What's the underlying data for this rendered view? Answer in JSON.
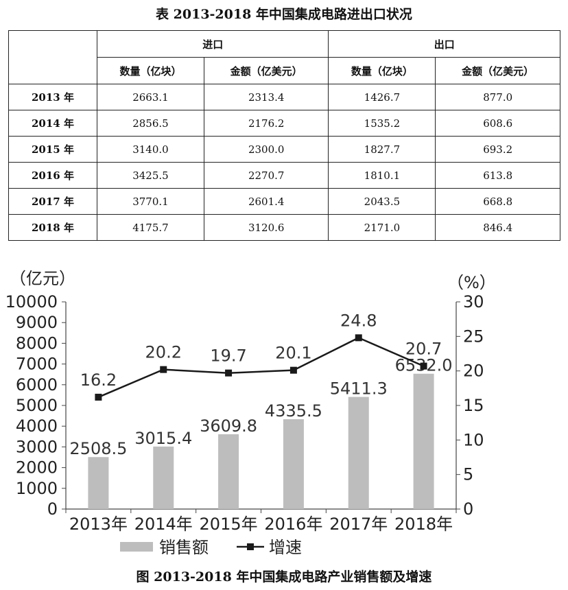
{
  "table": {
    "title": "表 2013-2018 年中国集成电路进出口状况",
    "group_headers": [
      "进口",
      "出口"
    ],
    "sub_headers": [
      "数量（亿块）",
      "金额（亿美元）",
      "数量（亿块）",
      "金额（亿美元）"
    ],
    "rows": [
      {
        "year": "2013 年",
        "cells": [
          "2663.1",
          "2313.4",
          "1426.7",
          "877.0"
        ]
      },
      {
        "year": "2014 年",
        "cells": [
          "2856.5",
          "2176.2",
          "1535.2",
          "608.6"
        ]
      },
      {
        "year": "2015 年",
        "cells": [
          "3140.0",
          "2300.0",
          "1827.7",
          "693.2"
        ]
      },
      {
        "year": "2016 年",
        "cells": [
          "3425.5",
          "2270.7",
          "1810.1",
          "613.8"
        ]
      },
      {
        "year": "2017 年",
        "cells": [
          "3770.1",
          "2601.4",
          "2043.5",
          "668.8"
        ]
      },
      {
        "year": "2018 年",
        "cells": [
          "4175.7",
          "3120.6",
          "2171.0",
          "846.4"
        ]
      }
    ]
  },
  "chart_data": {
    "type": "bar",
    "title": "图 2013-2018 年中国集成电路产业销售额及增速",
    "categories": [
      "2013年",
      "2014年",
      "2015年",
      "2016年",
      "2017年",
      "2018年"
    ],
    "left_axis_label": "（亿元）",
    "right_axis_label": "（%）",
    "ylim": [
      0,
      10000
    ],
    "yticks": [
      0,
      1000,
      2000,
      3000,
      4000,
      5000,
      6000,
      7000,
      8000,
      9000,
      10000
    ],
    "y2lim": [
      0,
      30
    ],
    "y2ticks": [
      0,
      5,
      10,
      15,
      20,
      25,
      30
    ],
    "series": [
      {
        "name": "销售额",
        "type": "bar",
        "axis": "left",
        "color": "#bdbdbd",
        "values": [
          2508.5,
          3015.4,
          3609.8,
          4335.5,
          5411.3,
          6532.0
        ],
        "labels": [
          "2508.5",
          "3015.4",
          "3609.8",
          "4335.5",
          "5411.3",
          "6532.0"
        ]
      },
      {
        "name": "增速",
        "type": "line",
        "axis": "right",
        "color": "#1a1a1a",
        "values": [
          16.2,
          20.2,
          19.7,
          20.1,
          24.8,
          20.7
        ],
        "labels": [
          "16.2",
          "20.2",
          "19.7",
          "20.1",
          "24.8",
          "20.7"
        ]
      }
    ],
    "legend_position": "bottom"
  }
}
